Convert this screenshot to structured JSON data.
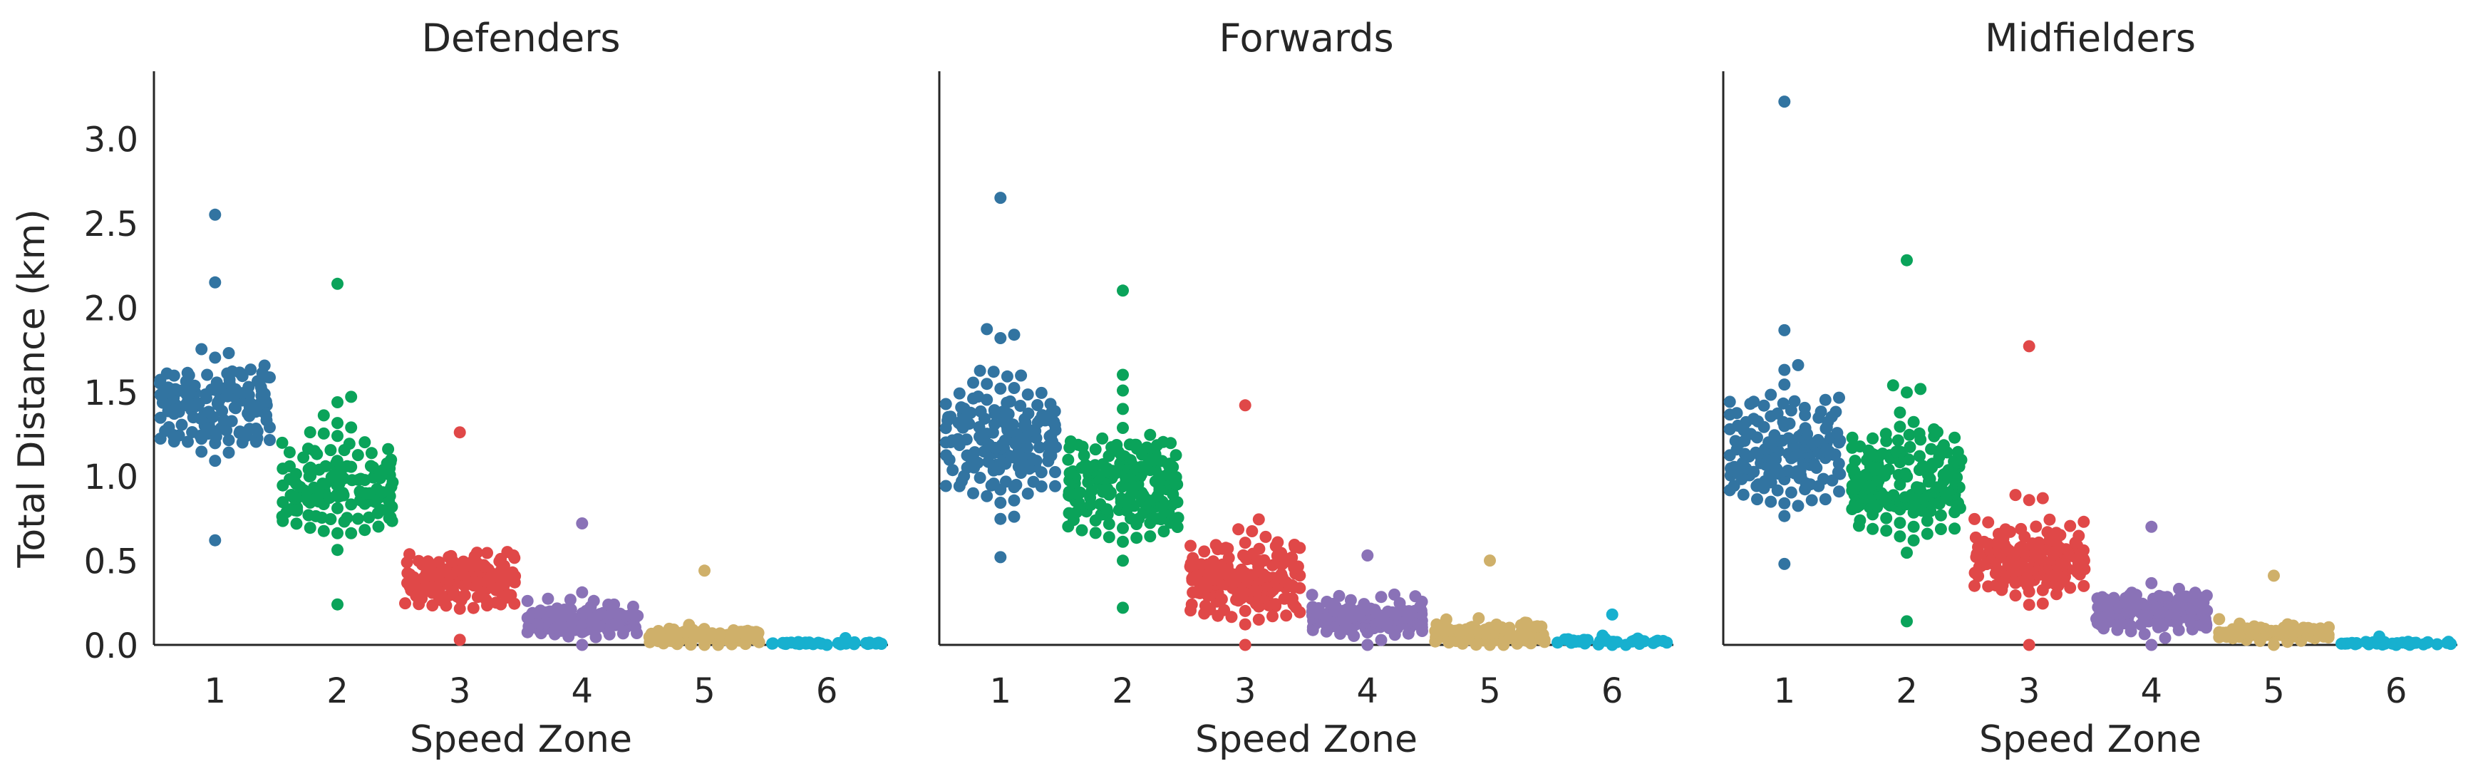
{
  "figure": {
    "shared_ylabel": "Total Distance (km)",
    "xlabel": "Speed Zone"
  },
  "colors": {
    "zone_1": "#3274a1",
    "zone_2": "#0aa35a",
    "zone_3": "#e04848",
    "zone_4": "#8a72b7",
    "zone_5": "#cfb06a",
    "zone_6": "#17b0cf",
    "axis": "#262626"
  },
  "chart_data": [
    {
      "type": "scatter",
      "subtype": "swarm",
      "title": "Defenders",
      "xlabel": "Speed Zone",
      "ylabel": "Total Distance (km)",
      "categories": [
        "1",
        "2",
        "3",
        "4",
        "5",
        "6"
      ],
      "ylim": [
        0,
        3.4
      ],
      "yticks": [
        "0.0",
        "0.5",
        "1.0",
        "1.5",
        "2.0",
        "2.5",
        "3.0"
      ],
      "grid": false,
      "legend": "none",
      "series": [
        {
          "category": "1",
          "color_key": "zone_1",
          "count": 150,
          "min": 0.62,
          "median": 1.4,
          "max": 2.55,
          "spread": 0.32
        },
        {
          "category": "2",
          "color_key": "zone_2",
          "count": 150,
          "min": 0.24,
          "median": 0.92,
          "max": 2.14,
          "spread": 0.33
        },
        {
          "category": "3",
          "color_key": "zone_3",
          "count": 150,
          "min": 0.03,
          "median": 0.38,
          "max": 1.26,
          "spread": 0.18
        },
        {
          "category": "4",
          "color_key": "zone_4",
          "count": 150,
          "min": 0.0,
          "median": 0.14,
          "max": 0.72,
          "spread": 0.1
        },
        {
          "category": "5",
          "color_key": "zone_5",
          "count": 110,
          "min": 0.0,
          "median": 0.05,
          "max": 0.44,
          "spread": 0.05
        },
        {
          "category": "6",
          "color_key": "zone_6",
          "count": 35,
          "min": 0.0,
          "median": 0.01,
          "max": 0.04,
          "spread": 0.008
        }
      ]
    },
    {
      "type": "scatter",
      "subtype": "swarm",
      "title": "Forwards",
      "xlabel": "Speed Zone",
      "ylabel": "",
      "categories": [
        "1",
        "2",
        "3",
        "4",
        "5",
        "6"
      ],
      "ylim": [
        0,
        3.4
      ],
      "grid": false,
      "legend": "none",
      "series": [
        {
          "category": "1",
          "color_key": "zone_1",
          "count": 170,
          "min": 0.52,
          "median": 1.2,
          "max": 2.65,
          "spread": 0.38
        },
        {
          "category": "2",
          "color_key": "zone_2",
          "count": 190,
          "min": 0.22,
          "median": 0.95,
          "max": 2.1,
          "spread": 0.34
        },
        {
          "category": "3",
          "color_key": "zone_3",
          "count": 200,
          "min": 0.0,
          "median": 0.38,
          "max": 1.42,
          "spread": 0.22
        },
        {
          "category": "4",
          "color_key": "zone_4",
          "count": 180,
          "min": 0.0,
          "median": 0.16,
          "max": 0.53,
          "spread": 0.1
        },
        {
          "category": "5",
          "color_key": "zone_5",
          "count": 130,
          "min": 0.0,
          "median": 0.06,
          "max": 0.5,
          "spread": 0.06
        },
        {
          "category": "6",
          "color_key": "zone_6",
          "count": 40,
          "min": 0.0,
          "median": 0.02,
          "max": 0.18,
          "spread": 0.02
        }
      ]
    },
    {
      "type": "scatter",
      "subtype": "swarm",
      "title": "Midfielders",
      "xlabel": "Speed Zone",
      "ylabel": "",
      "categories": [
        "1",
        "2",
        "3",
        "4",
        "5",
        "6"
      ],
      "ylim": [
        0,
        3.4
      ],
      "grid": false,
      "legend": "none",
      "series": [
        {
          "category": "1",
          "color_key": "zone_1",
          "count": 170,
          "min": 0.48,
          "median": 1.15,
          "max": 3.22,
          "spread": 0.35
        },
        {
          "category": "2",
          "color_key": "zone_2",
          "count": 190,
          "min": 0.14,
          "median": 0.98,
          "max": 2.28,
          "spread": 0.36
        },
        {
          "category": "3",
          "color_key": "zone_3",
          "count": 180,
          "min": 0.0,
          "median": 0.5,
          "max": 1.77,
          "spread": 0.22
        },
        {
          "category": "4",
          "color_key": "zone_4",
          "count": 170,
          "min": 0.0,
          "median": 0.2,
          "max": 0.7,
          "spread": 0.12
        },
        {
          "category": "5",
          "color_key": "zone_5",
          "count": 110,
          "min": 0.0,
          "median": 0.07,
          "max": 0.41,
          "spread": 0.05
        },
        {
          "category": "6",
          "color_key": "zone_6",
          "count": 35,
          "min": 0.0,
          "median": 0.01,
          "max": 0.05,
          "spread": 0.01
        }
      ]
    }
  ]
}
